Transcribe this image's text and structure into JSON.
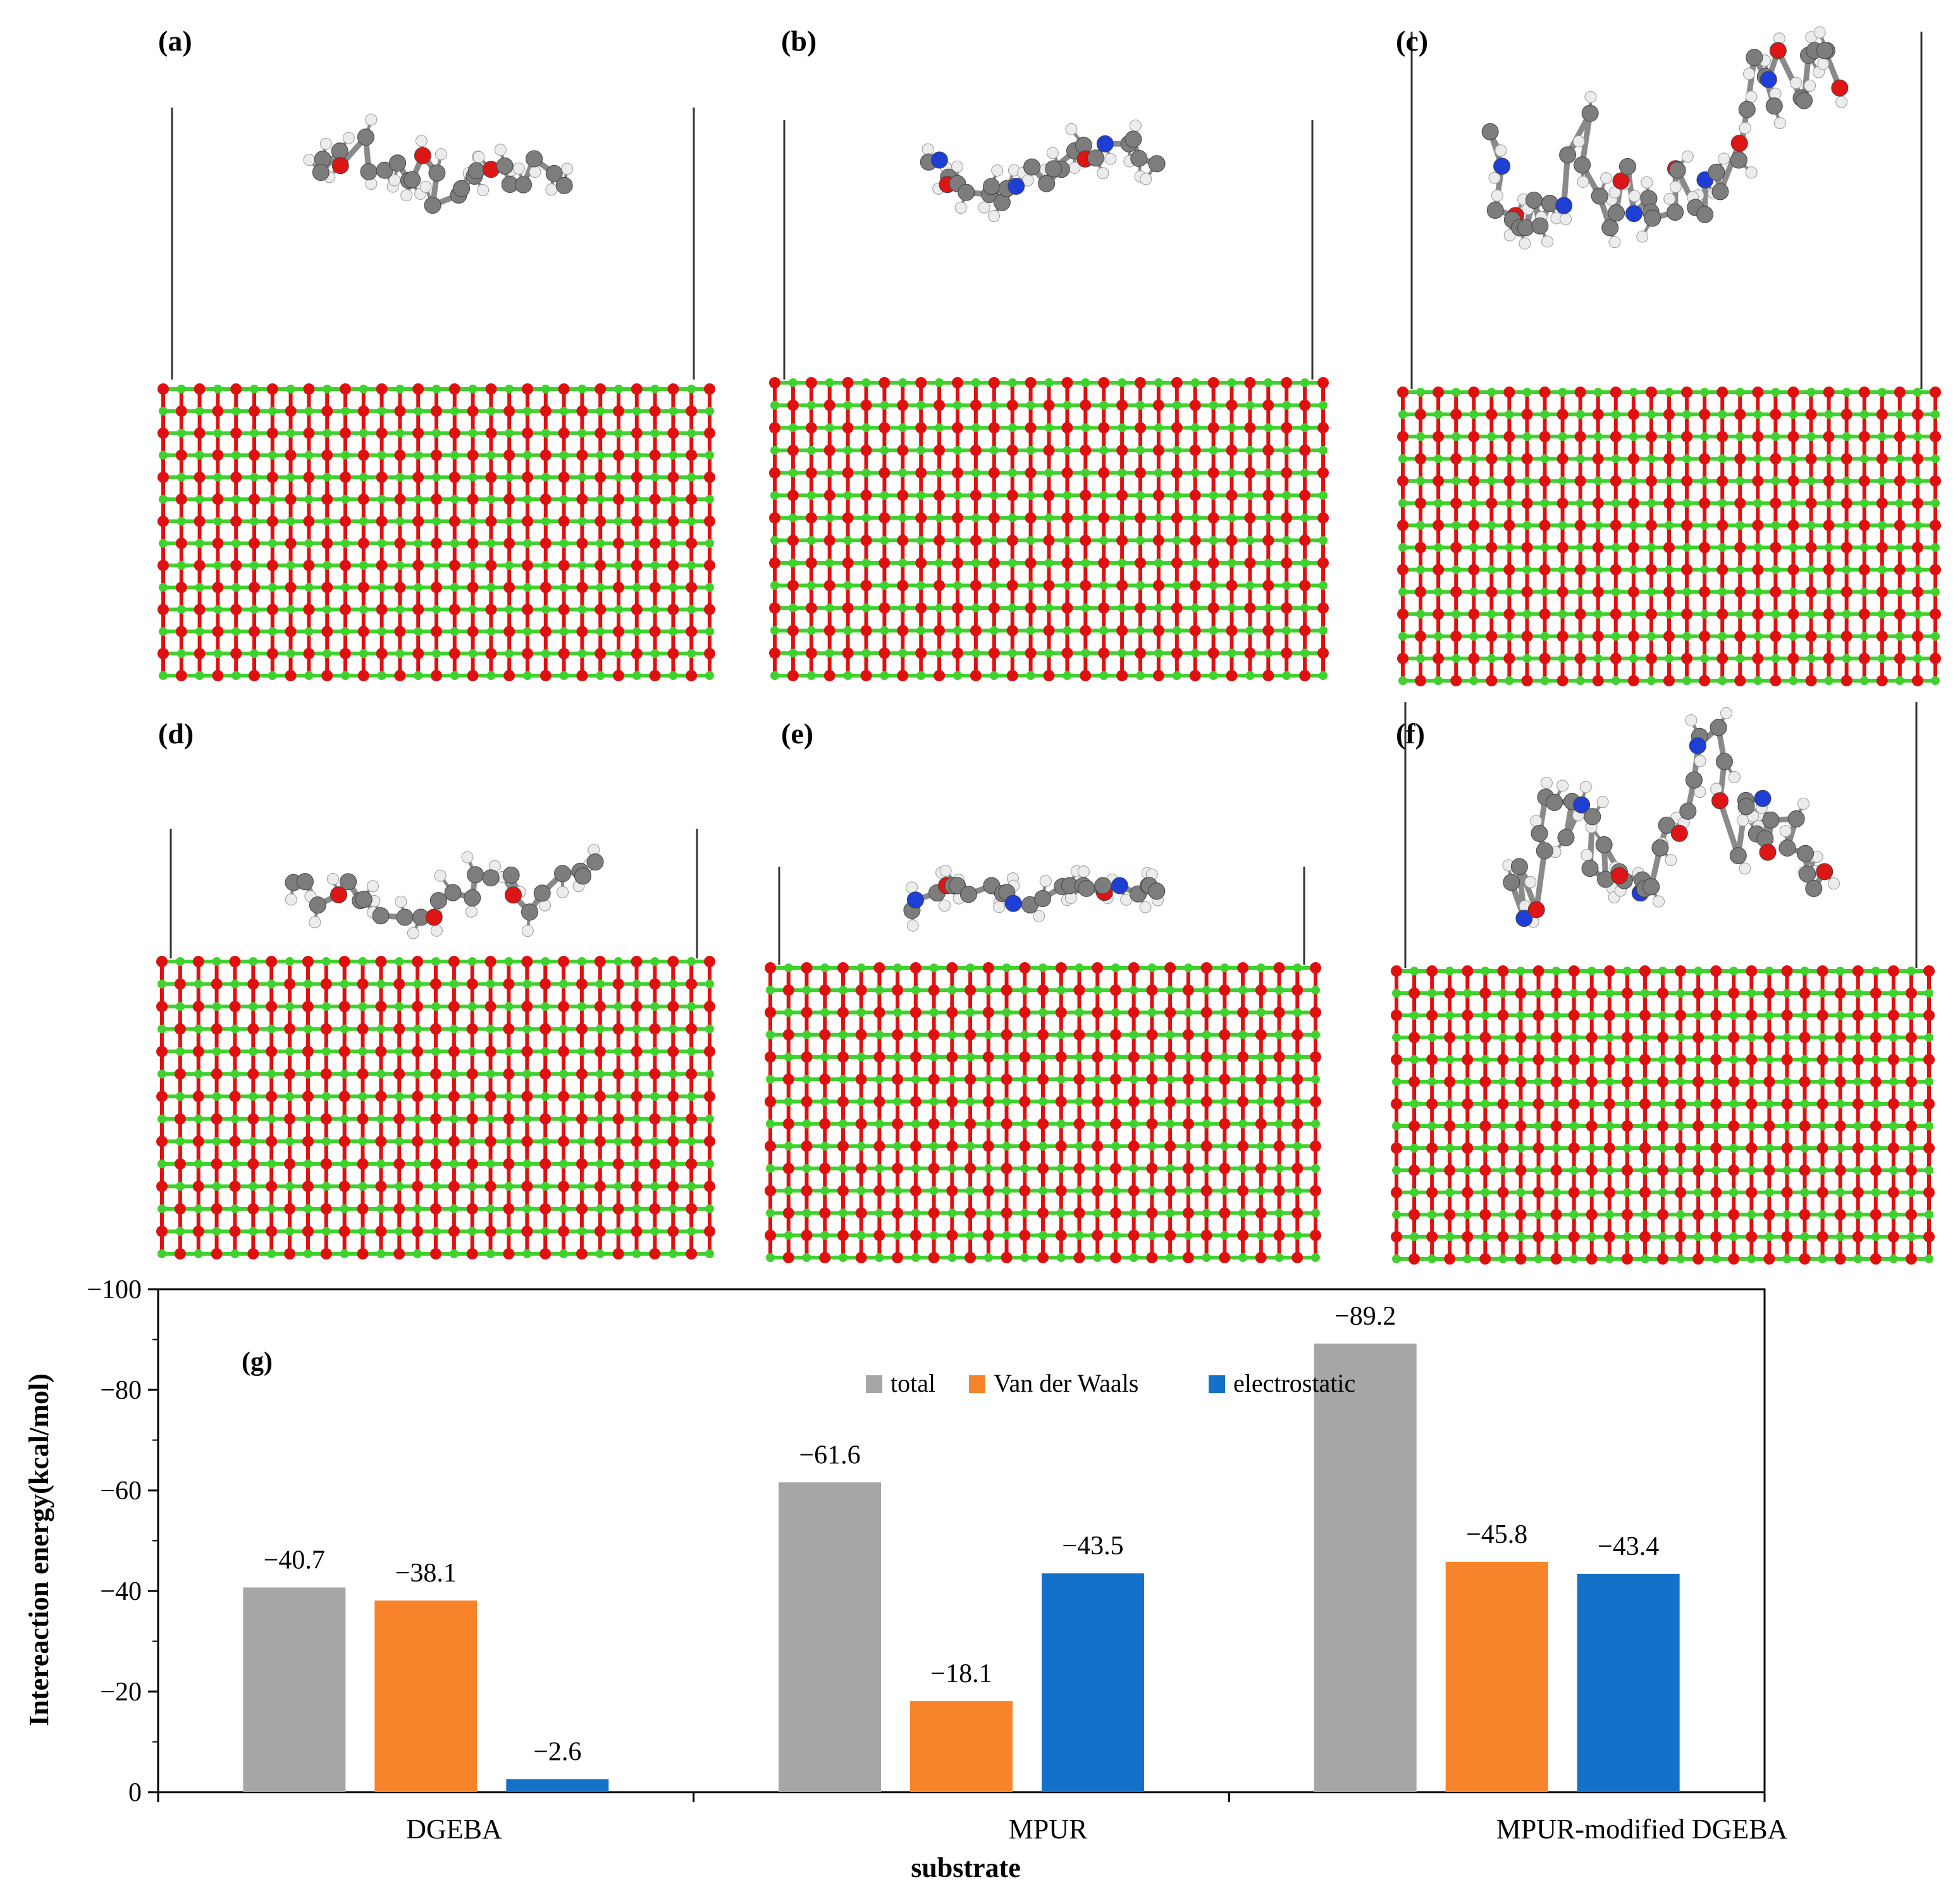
{
  "panels": [
    {
      "label": "(a)",
      "molecule": "DGEBA",
      "adsorbed": false
    },
    {
      "label": "(b)",
      "molecule": "MPUR",
      "adsorbed": false
    },
    {
      "label": "(c)",
      "molecule": "MPUR-modified DGEBA",
      "adsorbed": false
    },
    {
      "label": "(d)",
      "molecule": "DGEBA",
      "adsorbed": true
    },
    {
      "label": "(e)",
      "molecule": "MPUR",
      "adsorbed": true
    },
    {
      "label": "(f)",
      "molecule": "MPUR-modified DGEBA",
      "adsorbed": true
    }
  ],
  "colors": {
    "lattice_green": "#3fd12e",
    "lattice_red": "#e01010",
    "atom_carbon": "#7d7d7d",
    "atom_hydrogen": "#ececec",
    "atom_oxygen": "#dd1515",
    "atom_nitrogen": "#1d3fd6",
    "bond": "#8a8a8a",
    "frame_line": "#333333"
  },
  "chart_data": {
    "type": "bar",
    "panel_label": "(g)",
    "title": "",
    "xlabel": "substrate",
    "ylabel": "Intereaction energy(kcal/mol)",
    "categories": [
      "DGEBA",
      "MPUR",
      "MPUR-modified DGEBA"
    ],
    "series": [
      {
        "name": "total",
        "color": "#a6a6a6",
        "values": [
          -40.7,
          -61.6,
          -89.2
        ],
        "labels": [
          "−40.7",
          "−61.6",
          "−89.2"
        ]
      },
      {
        "name": "Van der Waals",
        "color": "#f7842a",
        "values": [
          -38.1,
          -18.1,
          -45.8
        ],
        "labels": [
          "−38.1",
          "−18.1",
          "−45.8"
        ]
      },
      {
        "name": "electrostatic",
        "color": "#1471c9",
        "values": [
          -2.6,
          -43.5,
          -43.4
        ],
        "labels": [
          "−2.6",
          "−43.5",
          "−43.4"
        ]
      }
    ],
    "ylim": [
      0,
      -100
    ],
    "yticks": [
      0,
      -20,
      -40,
      -60,
      -80,
      -100
    ],
    "ytick_labels": [
      "0",
      "−20",
      "−40",
      "−60",
      "−80",
      "−100"
    ],
    "y_inverted": true,
    "legend_position": "top-center",
    "grid": false
  }
}
